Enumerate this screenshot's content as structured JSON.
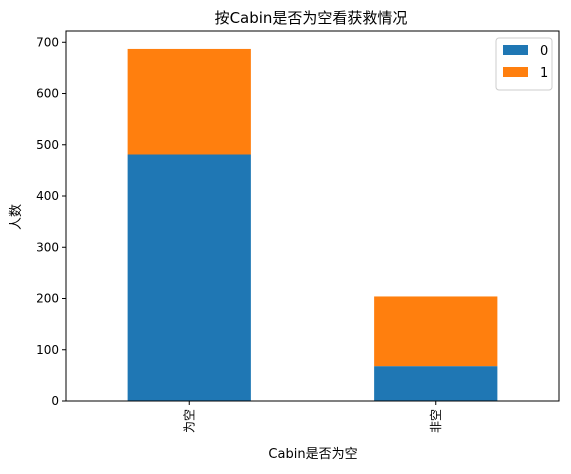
{
  "chart_data": {
    "type": "bar",
    "stacked": true,
    "title": "按Cabin是否为空看获救情况",
    "xlabel": "Cabin是否为空",
    "ylabel": "人数",
    "categories": [
      "为空",
      "非空"
    ],
    "series": [
      {
        "name": "0",
        "values": [
          481,
          68
        ],
        "color": "#1f77b4"
      },
      {
        "name": "1",
        "values": [
          206,
          136
        ],
        "color": "#ff7f0e"
      }
    ],
    "ylim": [
      0,
      722
    ],
    "yticks": [
      0,
      100,
      200,
      300,
      400,
      500,
      600,
      700
    ],
    "grid": false,
    "legend_position": "top-right"
  }
}
